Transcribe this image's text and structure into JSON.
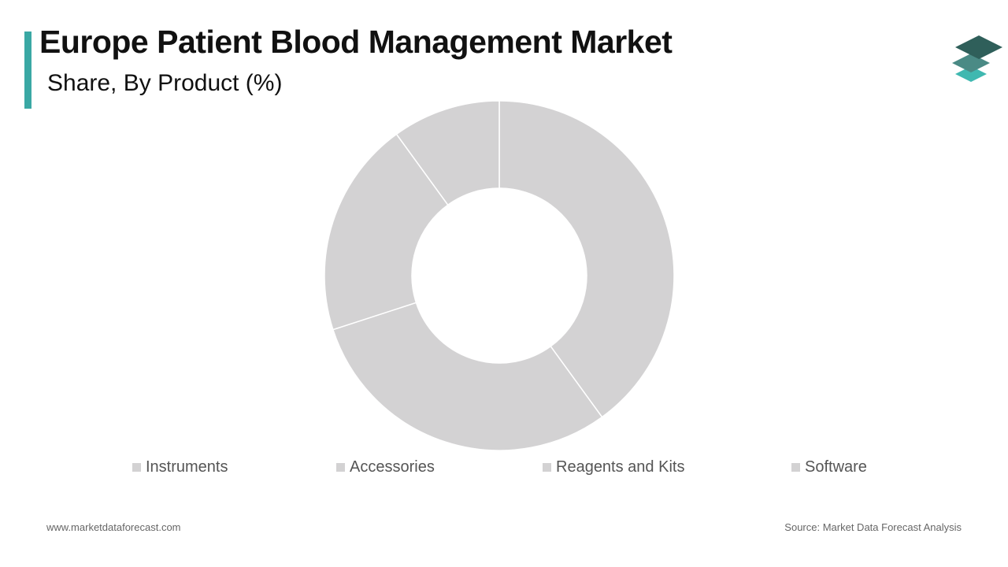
{
  "header": {
    "title": "Europe Patient Blood Management Market",
    "subtitle": "Share, By Product (%)"
  },
  "logo": {
    "icon": "stacked-layers-icon",
    "colors": [
      "#2f5f5a",
      "#4a8a85",
      "#3fb8b0"
    ]
  },
  "chart_data": {
    "type": "pie",
    "variant": "donut",
    "categories": [
      "Instruments",
      "Accessories",
      "Reagents and Kits",
      "Software"
    ],
    "values": [
      40,
      30,
      20,
      10
    ],
    "slice_color": "#d3d2d3",
    "separator_color": "#ffffff",
    "legend_position": "bottom"
  },
  "footer": {
    "website": "www.marketdataforecast.com",
    "source": "Source: Market Data Forecast Analysis"
  },
  "colors": {
    "accent": "#3aa8a4",
    "text": "#111111",
    "muted": "#666666"
  }
}
